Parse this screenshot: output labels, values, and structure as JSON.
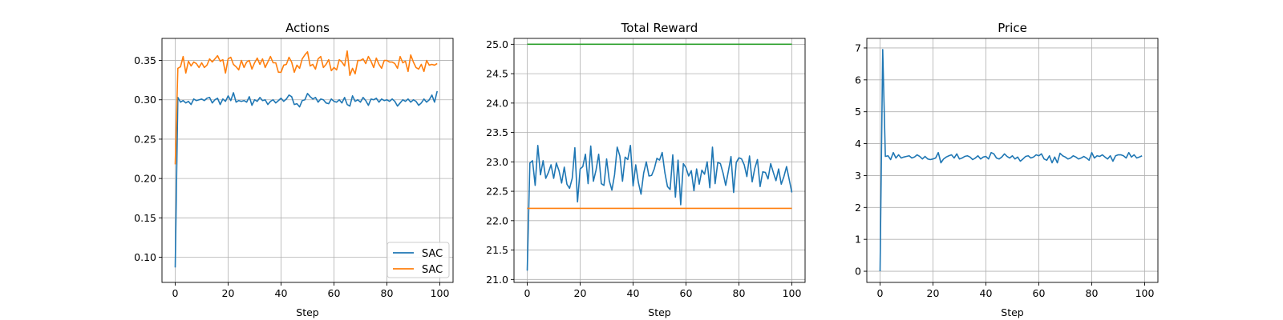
{
  "chart_data": [
    {
      "type": "line",
      "title": "Actions",
      "xlabel": "Step",
      "ylabel": "",
      "xlim": [
        -5,
        105
      ],
      "ylim": [
        0.068,
        0.378
      ],
      "xticks": [
        0,
        20,
        40,
        60,
        80,
        100
      ],
      "xtick_labels": [
        "0",
        "20",
        "40",
        "60",
        "80",
        "100"
      ],
      "yticks": [
        0.1,
        0.15,
        0.2,
        0.25,
        0.3,
        0.35
      ],
      "ytick_labels": [
        "0.10",
        "0.15",
        "0.20",
        "0.25",
        "0.30",
        "0.35"
      ],
      "grid": true,
      "legend": {
        "placement": "lower-right",
        "entries": [
          "SAC",
          "SAC"
        ]
      },
      "x": [
        0,
        1,
        2,
        3,
        4,
        5,
        6,
        7,
        8,
        9,
        10,
        11,
        12,
        13,
        14,
        15,
        16,
        17,
        18,
        19,
        20,
        21,
        22,
        23,
        24,
        25,
        26,
        27,
        28,
        29,
        30,
        31,
        32,
        33,
        34,
        35,
        36,
        37,
        38,
        39,
        40,
        41,
        42,
        43,
        44,
        45,
        46,
        47,
        48,
        49,
        50,
        51,
        52,
        53,
        54,
        55,
        56,
        57,
        58,
        59,
        60,
        61,
        62,
        63,
        64,
        65,
        66,
        67,
        68,
        69,
        70,
        71,
        72,
        73,
        74,
        75,
        76,
        77,
        78,
        79,
        80,
        81,
        82,
        83,
        84,
        85,
        86,
        87,
        88,
        89,
        90,
        91,
        92,
        93,
        94,
        95,
        96,
        97,
        98,
        99
      ],
      "series": [
        {
          "name": "SAC",
          "color": "#1f77b4",
          "values": [
            0.087,
            0.303,
            0.297,
            0.299,
            0.296,
            0.298,
            0.294,
            0.301,
            0.299,
            0.3,
            0.301,
            0.299,
            0.302,
            0.303,
            0.296,
            0.3,
            0.302,
            0.294,
            0.301,
            0.298,
            0.305,
            0.299,
            0.309,
            0.297,
            0.299,
            0.298,
            0.299,
            0.297,
            0.304,
            0.293,
            0.3,
            0.298,
            0.303,
            0.299,
            0.3,
            0.294,
            0.298,
            0.3,
            0.296,
            0.299,
            0.302,
            0.298,
            0.301,
            0.306,
            0.304,
            0.294,
            0.295,
            0.291,
            0.299,
            0.3,
            0.308,
            0.304,
            0.301,
            0.303,
            0.297,
            0.301,
            0.3,
            0.296,
            0.295,
            0.301,
            0.298,
            0.297,
            0.3,
            0.296,
            0.303,
            0.294,
            0.292,
            0.305,
            0.298,
            0.3,
            0.297,
            0.303,
            0.299,
            0.293,
            0.301,
            0.3,
            0.302,
            0.297,
            0.301,
            0.299,
            0.3,
            0.298,
            0.301,
            0.298,
            0.292,
            0.296,
            0.3,
            0.298,
            0.301,
            0.297,
            0.3,
            0.298,
            0.293,
            0.296,
            0.301,
            0.297,
            0.3,
            0.306,
            0.297,
            0.311
          ]
        },
        {
          "name": "SAC",
          "color": "#ff7f0e",
          "values": [
            0.218,
            0.34,
            0.342,
            0.355,
            0.334,
            0.349,
            0.343,
            0.348,
            0.346,
            0.341,
            0.347,
            0.341,
            0.344,
            0.352,
            0.348,
            0.352,
            0.356,
            0.349,
            0.351,
            0.334,
            0.352,
            0.354,
            0.345,
            0.342,
            0.338,
            0.35,
            0.341,
            0.348,
            0.35,
            0.339,
            0.347,
            0.353,
            0.345,
            0.352,
            0.341,
            0.348,
            0.355,
            0.347,
            0.347,
            0.335,
            0.335,
            0.344,
            0.345,
            0.354,
            0.348,
            0.335,
            0.344,
            0.34,
            0.352,
            0.357,
            0.361,
            0.343,
            0.345,
            0.339,
            0.352,
            0.355,
            0.341,
            0.345,
            0.351,
            0.337,
            0.341,
            0.338,
            0.351,
            0.348,
            0.343,
            0.362,
            0.331,
            0.34,
            0.333,
            0.35,
            0.35,
            0.352,
            0.346,
            0.355,
            0.349,
            0.341,
            0.353,
            0.345,
            0.34,
            0.35,
            0.35,
            0.348,
            0.348,
            0.346,
            0.34,
            0.355,
            0.347,
            0.349,
            0.336,
            0.357,
            0.348,
            0.341,
            0.339,
            0.345,
            0.336,
            0.35,
            0.344,
            0.345,
            0.344,
            0.346
          ]
        }
      ]
    },
    {
      "type": "line",
      "title": "Total Reward",
      "xlabel": "Step",
      "ylabel": "",
      "xlim": [
        -5,
        105
      ],
      "ylim": [
        20.95,
        25.1
      ],
      "xticks": [
        0,
        20,
        40,
        60,
        80,
        100
      ],
      "xtick_labels": [
        "0",
        "20",
        "40",
        "60",
        "80",
        "100"
      ],
      "yticks": [
        21.0,
        21.5,
        22.0,
        22.5,
        23.0,
        23.5,
        24.0,
        24.5,
        25.0
      ],
      "ytick_labels": [
        "21.0",
        "21.5",
        "22.0",
        "22.5",
        "23.0",
        "23.5",
        "24.0",
        "24.5",
        "25.0"
      ],
      "grid": true,
      "series": [
        {
          "color": "#1f77b4",
          "x": [
            0,
            1,
            2,
            3,
            4,
            5,
            6,
            7,
            8,
            9,
            10,
            11,
            12,
            13,
            14,
            15,
            16,
            17,
            18,
            19,
            20,
            21,
            22,
            23,
            24,
            25,
            26,
            27,
            28,
            29,
            30,
            31,
            32,
            33,
            34,
            35,
            36,
            37,
            38,
            39,
            40,
            41,
            42,
            43,
            44,
            45,
            46,
            47,
            48,
            49,
            50,
            51,
            52,
            53,
            54,
            55,
            56,
            57,
            58,
            59,
            60,
            61,
            62,
            63,
            64,
            65,
            66,
            67,
            68,
            69,
            70,
            71,
            72,
            73,
            74,
            75,
            76,
            77,
            78,
            79,
            80,
            81,
            82,
            83,
            84,
            85,
            86,
            87,
            88,
            89,
            90,
            91,
            92,
            93,
            94,
            95,
            96,
            97,
            98,
            99,
            100
          ],
          "values": [
            21.15,
            22.98,
            23.02,
            22.6,
            23.28,
            22.78,
            23.02,
            22.72,
            22.82,
            22.95,
            22.72,
            22.98,
            22.85,
            22.64,
            22.91,
            22.62,
            22.55,
            22.72,
            23.24,
            22.32,
            22.88,
            22.92,
            23.13,
            22.63,
            23.27,
            22.67,
            22.86,
            23.13,
            22.63,
            22.6,
            23.05,
            22.68,
            22.52,
            22.78,
            23.25,
            23.1,
            22.67,
            23.08,
            23.04,
            23.28,
            22.59,
            22.95,
            22.65,
            22.45,
            22.81,
            23.0,
            22.76,
            22.77,
            22.88,
            23.06,
            23.03,
            23.16,
            22.82,
            22.58,
            22.53,
            23.12,
            22.4,
            23.03,
            22.27,
            22.97,
            22.9,
            22.76,
            22.85,
            22.51,
            22.88,
            22.62,
            22.86,
            22.79,
            23.0,
            22.56,
            23.25,
            22.63,
            22.99,
            22.97,
            22.81,
            22.6,
            22.84,
            23.09,
            22.48,
            22.99,
            23.07,
            23.05,
            22.95,
            22.75,
            23.1,
            22.66,
            22.89,
            23.04,
            22.58,
            22.83,
            22.82,
            22.71,
            22.97,
            22.82,
            22.68,
            22.88,
            22.62,
            22.75,
            22.92,
            22.7,
            22.48
          ]
        },
        {
          "color": "#2ca02c",
          "x": [
            0,
            100
          ],
          "values": [
            25.0,
            25.0
          ]
        },
        {
          "color": "#ff7f0e",
          "x": [
            0,
            100
          ],
          "values": [
            22.21,
            22.21
          ]
        }
      ]
    },
    {
      "type": "line",
      "title": "Price",
      "xlabel": "Step",
      "ylabel": "",
      "xlim": [
        -5,
        105
      ],
      "ylim": [
        -0.35,
        7.3
      ],
      "xticks": [
        0,
        20,
        40,
        60,
        80,
        100
      ],
      "xtick_labels": [
        "0",
        "20",
        "40",
        "60",
        "80",
        "100"
      ],
      "yticks": [
        0,
        1,
        2,
        3,
        4,
        5,
        6,
        7
      ],
      "ytick_labels": [
        "0",
        "1",
        "2",
        "3",
        "4",
        "5",
        "6",
        "7"
      ],
      "grid": true,
      "series": [
        {
          "color": "#1f77b4",
          "x": [
            0,
            1,
            2,
            3,
            4,
            5,
            6,
            7,
            8,
            9,
            10,
            11,
            12,
            13,
            14,
            15,
            16,
            17,
            18,
            19,
            20,
            21,
            22,
            23,
            24,
            25,
            26,
            27,
            28,
            29,
            30,
            31,
            32,
            33,
            34,
            35,
            36,
            37,
            38,
            39,
            40,
            41,
            42,
            43,
            44,
            45,
            46,
            47,
            48,
            49,
            50,
            51,
            52,
            53,
            54,
            55,
            56,
            57,
            58,
            59,
            60,
            61,
            62,
            63,
            64,
            65,
            66,
            67,
            68,
            69,
            70,
            71,
            72,
            73,
            74,
            75,
            76,
            77,
            78,
            79,
            80,
            81,
            82,
            83,
            84,
            85,
            86,
            87,
            88,
            89,
            90,
            91,
            92,
            93,
            94,
            95,
            96,
            97,
            98,
            99
          ],
          "values": [
            0.0,
            6.95,
            3.6,
            3.62,
            3.5,
            3.72,
            3.55,
            3.65,
            3.55,
            3.58,
            3.6,
            3.62,
            3.55,
            3.58,
            3.65,
            3.6,
            3.52,
            3.6,
            3.52,
            3.5,
            3.52,
            3.55,
            3.72,
            3.4,
            3.52,
            3.58,
            3.62,
            3.65,
            3.55,
            3.68,
            3.52,
            3.55,
            3.6,
            3.62,
            3.58,
            3.5,
            3.55,
            3.62,
            3.52,
            3.58,
            3.6,
            3.52,
            3.72,
            3.68,
            3.55,
            3.52,
            3.58,
            3.68,
            3.6,
            3.55,
            3.62,
            3.52,
            3.58,
            3.45,
            3.52,
            3.6,
            3.62,
            3.55,
            3.58,
            3.65,
            3.62,
            3.68,
            3.52,
            3.48,
            3.62,
            3.4,
            3.58,
            3.4,
            3.7,
            3.62,
            3.58,
            3.52,
            3.55,
            3.62,
            3.58,
            3.52,
            3.55,
            3.6,
            3.55,
            3.48,
            3.72,
            3.55,
            3.62,
            3.6,
            3.65,
            3.58,
            3.52,
            3.62,
            3.45,
            3.62,
            3.65,
            3.65,
            3.62,
            3.55,
            3.72,
            3.58,
            3.65,
            3.55,
            3.58,
            3.62
          ]
        }
      ]
    }
  ]
}
